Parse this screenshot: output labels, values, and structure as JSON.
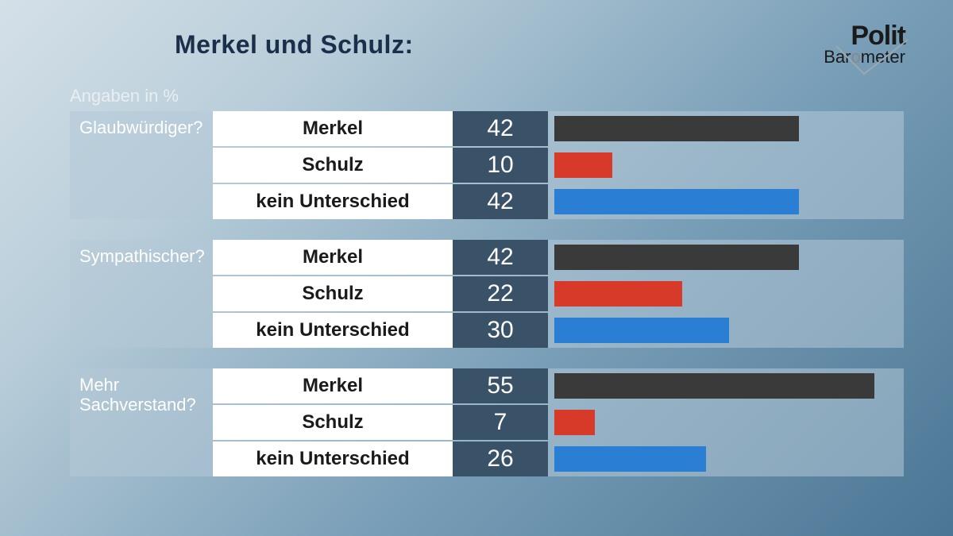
{
  "title": "Merkel und Schulz:",
  "subtitle": "Angaben in %",
  "logo": {
    "line1": "Polit",
    "line2_pre": "Bar",
    "line2_o": "o",
    "line2_post": "meter"
  },
  "chart": {
    "type": "bar",
    "bar_max_value": 60,
    "colors": {
      "merkel": "#3a3a3a",
      "schulz": "#d83a2a",
      "none": "#2a7fd4",
      "value_bg": "#3a5268",
      "label_bg": "#ffffff",
      "question_bg": "rgba(180,200,215,0.55)",
      "title_color": "#1a2f4a",
      "subtitle_color": "#e8eef3",
      "question_color": "#ffffff"
    },
    "groups": [
      {
        "question": "Glaubwürdiger?",
        "rows": [
          {
            "label": "Merkel",
            "value": 42,
            "color_key": "merkel"
          },
          {
            "label": "Schulz",
            "value": 10,
            "color_key": "schulz"
          },
          {
            "label": "kein Unterschied",
            "value": 42,
            "color_key": "none"
          }
        ]
      },
      {
        "question": "Sympathischer?",
        "rows": [
          {
            "label": "Merkel",
            "value": 42,
            "color_key": "merkel"
          },
          {
            "label": "Schulz",
            "value": 22,
            "color_key": "schulz"
          },
          {
            "label": "kein Unterschied",
            "value": 30,
            "color_key": "none"
          }
        ]
      },
      {
        "question": "Mehr Sachverstand?",
        "rows": [
          {
            "label": "Merkel",
            "value": 55,
            "color_key": "merkel"
          },
          {
            "label": "Schulz",
            "value": 7,
            "color_key": "schulz"
          },
          {
            "label": "kein Unterschied",
            "value": 26,
            "color_key": "none"
          }
        ]
      }
    ]
  }
}
